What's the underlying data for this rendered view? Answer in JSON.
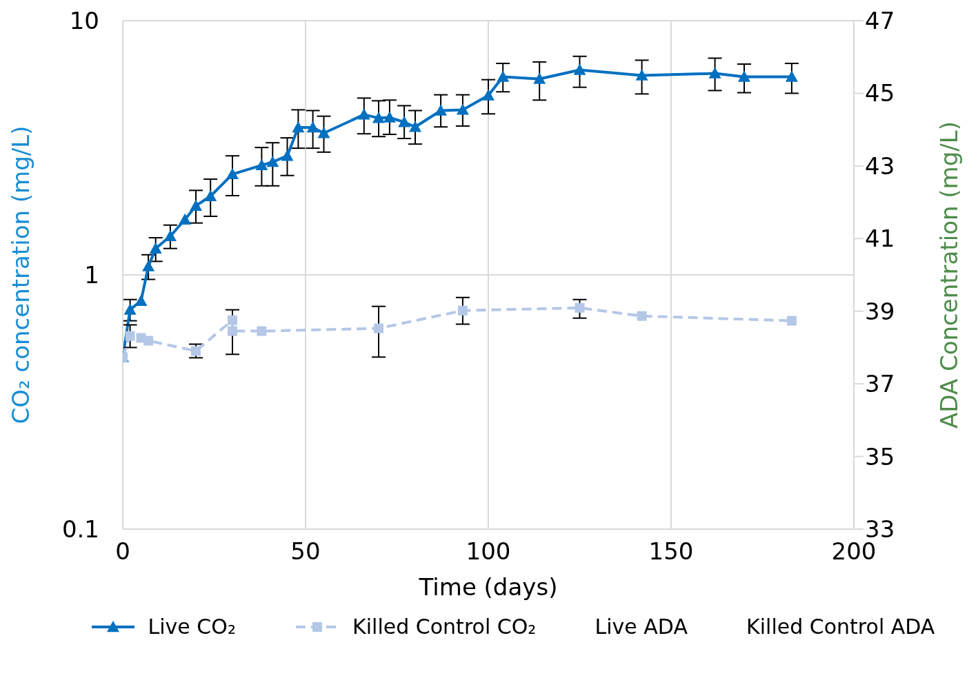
{
  "chart_data": {
    "type": "line",
    "xlabel": "Time (days)",
    "ylabel": "CO₂ concentration (mg/L)",
    "y2label": "ADA Concentration (mg/L)",
    "log": "y",
    "xlim": [
      0,
      200
    ],
    "xticks": [
      0,
      50,
      100,
      150,
      200
    ],
    "ylim": [
      0.1,
      10
    ],
    "yticks": [
      0.1,
      1,
      10
    ],
    "y2lim": [
      33,
      47
    ],
    "y2ticks": [
      33,
      35,
      37,
      39,
      41,
      43,
      45,
      47
    ],
    "grid": true,
    "legend": "bottom",
    "series": [
      {
        "name": "Live CO₂",
        "color": "#0070c0",
        "marker": "triangle",
        "line_style": "solid",
        "x": [
          0,
          2,
          5,
          7,
          9,
          13,
          17,
          20,
          24,
          30,
          38,
          41,
          45,
          48,
          52,
          55,
          66,
          70,
          73,
          77,
          80,
          87,
          93,
          100,
          104,
          114,
          125,
          142,
          162,
          170,
          183
        ],
        "values": [
          0.475,
          0.73,
          0.79,
          1.08,
          1.27,
          1.42,
          1.65,
          1.87,
          2.04,
          2.49,
          2.7,
          2.78,
          2.94,
          3.8,
          3.8,
          3.61,
          4.27,
          4.14,
          4.16,
          3.99,
          3.82,
          4.43,
          4.46,
          5.08,
          6.01,
          5.9,
          6.4,
          6.09,
          6.2,
          6.01,
          6.01
        ],
        "errors": [
          null,
          [
            0.66,
            0.8
          ],
          null,
          [
            0.96,
            1.2
          ],
          [
            1.13,
            1.4
          ],
          [
            1.27,
            1.57
          ],
          null,
          [
            1.6,
            2.15
          ],
          [
            1.7,
            2.38
          ],
          [
            2.05,
            2.94
          ],
          [
            2.24,
            3.17
          ],
          [
            2.24,
            3.31
          ],
          [
            2.46,
            3.46
          ],
          [
            3.15,
            4.46
          ],
          [
            3.15,
            4.43
          ],
          [
            3.04,
            4.21
          ],
          [
            3.59,
            4.96
          ],
          [
            3.5,
            4.84
          ],
          [
            3.57,
            4.87
          ],
          [
            3.44,
            4.63
          ],
          [
            3.27,
            4.43
          ],
          [
            3.82,
            5.11
          ],
          [
            3.85,
            5.11
          ],
          [
            4.3,
            5.86
          ],
          [
            5.25,
            6.79
          ],
          [
            4.87,
            6.88
          ],
          [
            5.47,
            7.24
          ],
          [
            5.15,
            6.99
          ],
          [
            5.31,
            7.12
          ],
          [
            5.21,
            6.75
          ],
          [
            5.18,
            6.79
          ]
        ]
      },
      {
        "name": "Killed Control CO₂",
        "color": "#b4c7e7",
        "marker": "square",
        "line_style": "dashed",
        "x": [
          0,
          2,
          5,
          7,
          20,
          30,
          30,
          38,
          70,
          93,
          125,
          142,
          183
        ],
        "values": [
          0.475,
          0.575,
          0.565,
          0.551,
          0.502,
          0.664,
          0.601,
          0.601,
          0.616,
          0.724,
          0.742,
          0.689,
          0.66
        ],
        "errors": [
          null,
          [
            0.518,
            0.636
          ],
          null,
          null,
          [
            0.472,
            0.534
          ],
          null,
          [
            0.487,
            0.729
          ],
          null,
          [
            0.475,
            0.752
          ],
          [
            0.64,
            0.815
          ],
          [
            0.676,
            0.8
          ],
          null,
          null
        ]
      },
      {
        "name": "Live ADA",
        "axis": "y2"
      },
      {
        "name": "Killed Control ADA",
        "axis": "y2"
      }
    ]
  }
}
